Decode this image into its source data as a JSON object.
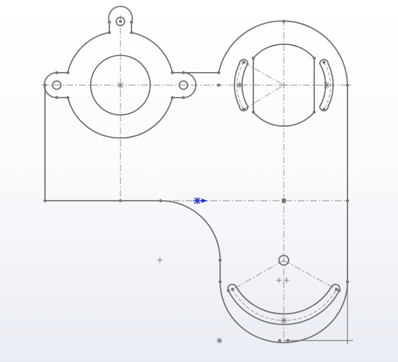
{
  "app": "sketch-editor",
  "sketch": {
    "entities": [
      "outer-profile",
      "boss-left",
      "boss-right",
      "bottom-lobe",
      "arc-slots",
      "centerlines"
    ],
    "colors": {
      "geometry": "#6f6f6f",
      "centerline": "#8a8a8a",
      "point": "#7a7a7a",
      "origin": "#1a2bd6",
      "background_top": "#ffffff",
      "background_bottom": "#e9ecf3"
    },
    "icons": [
      "origin-icon",
      "sketch-point-icon",
      "center-mark-icon"
    ]
  }
}
